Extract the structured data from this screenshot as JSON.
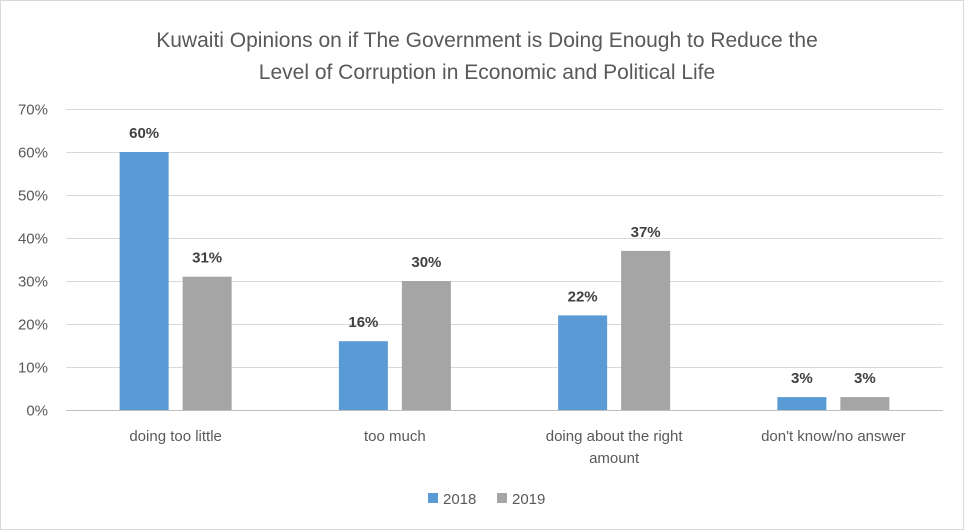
{
  "chart_data": {
    "type": "bar",
    "title": "Kuwaiti Opinions on if The Government is Doing Enough to Reduce the Level of Corruption in Economic and Political Life",
    "title_lines": [
      "Kuwaiti Opinions on if The Government is Doing Enough to Reduce the",
      "Level of Corruption in Economic and Political Life"
    ],
    "categories": [
      "doing too little",
      "too much",
      "doing about the right amount",
      "don't know/no answer"
    ],
    "category_lines": [
      [
        "doing too little"
      ],
      [
        "too much"
      ],
      [
        "doing about the right",
        "amount"
      ],
      [
        "don't know/no answer"
      ]
    ],
    "series": [
      {
        "name": "2018",
        "color": "#5b9bd5",
        "values": [
          60,
          16,
          22,
          3
        ],
        "labels": [
          "60%",
          "16%",
          "22%",
          "3%"
        ]
      },
      {
        "name": "2019",
        "color": "#a5a5a5",
        "values": [
          31,
          30,
          37,
          3
        ],
        "labels": [
          "31%",
          "30%",
          "37%",
          "3%"
        ]
      }
    ],
    "ylim": [
      0,
      70
    ],
    "yticks": [
      0,
      10,
      20,
      30,
      40,
      50,
      60,
      70
    ],
    "ytick_labels": [
      "0%",
      "10%",
      "20%",
      "30%",
      "40%",
      "50%",
      "60%",
      "70%"
    ],
    "xlabel": "",
    "ylabel": "",
    "grid": true,
    "legend_position": "bottom"
  }
}
